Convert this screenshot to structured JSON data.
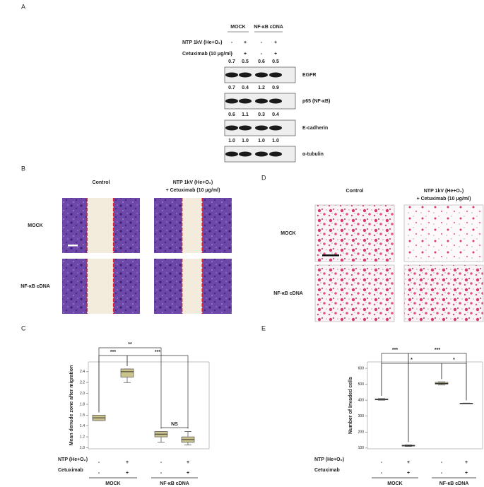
{
  "panels": {
    "a": {
      "label": "A",
      "columns": [
        "MOCK",
        "NF-κB cDNA"
      ],
      "treatments": [
        {
          "name": "NTP 1kV (He+O₂)",
          "marks": [
            "-",
            "+",
            "-",
            "+"
          ]
        },
        {
          "name": "Cetuximab (10 μg/ml)",
          "marks": [
            "-",
            "+",
            "-",
            "+"
          ]
        }
      ],
      "bands": [
        {
          "name": "EGFR",
          "quant": [
            "0.7",
            "0.5",
            "0.6",
            "0.5"
          ]
        },
        {
          "name": "p65 (NF-κB)",
          "quant": [
            "0.7",
            "0.4",
            "1.2",
            "0.9"
          ]
        },
        {
          "name": "E-cadherin",
          "quant": [
            "0.6",
            "1.1",
            "0.3",
            "0.4"
          ]
        },
        {
          "name": "α-tubulin",
          "quant": [
            "1.0",
            "1.0",
            "1.0",
            "1.0"
          ]
        }
      ]
    },
    "b": {
      "label": "B",
      "columns": [
        [
          "Control"
        ],
        [
          "NTP 1kV (He+O₂)",
          "+ Cetuximab (10 μg/ml)"
        ]
      ],
      "rows": [
        "MOCK",
        "NF-κB cDNA"
      ]
    },
    "d": {
      "label": "D",
      "columns": [
        [
          "Control"
        ],
        [
          "NTP 1kV (He+O₂)",
          "+ Cetuximab (10 μg/ml)"
        ]
      ],
      "rows": [
        "MOCK",
        "NF-κB cDNA"
      ]
    }
  },
  "chart_data": [
    {
      "type": "box",
      "panel_label": "C",
      "ylabel": "Mean denude zone after migration",
      "ylim": [
        0.98,
        2.58
      ],
      "yticks": [
        {
          "value": 1,
          "label": "1.0"
        },
        1.2,
        1.4,
        1.6,
        1.8,
        {
          "value": 2,
          "label": "2.0"
        },
        2.2,
        2.4
      ],
      "color": "#cbc38c",
      "boxes": [
        {
          "low": 1.5,
          "q1": 1.5,
          "median": 1.55,
          "q3": 1.6,
          "high": 1.6
        },
        {
          "low": 2.2,
          "q1": 2.3,
          "median": 2.4,
          "q3": 2.45,
          "high": 2.45
        },
        {
          "low": 1.1,
          "q1": 1.2,
          "median": 1.25,
          "q3": 1.3,
          "high": 1.3
        },
        {
          "low": 1.05,
          "q1": 1.1,
          "median": 1.15,
          "q3": 1.2,
          "high": 1.3
        }
      ],
      "annotations": [
        "***",
        "**",
        "***",
        "NS"
      ],
      "conditions": [
        {
          "name": "NTP (He+O₂)",
          "marks": [
            "-",
            "+",
            "-",
            "+"
          ]
        },
        {
          "name": "Cetuximab",
          "marks": [
            "-",
            "+",
            "-",
            "+"
          ]
        }
      ],
      "groups": [
        "MOCK",
        "NF-κB cDNA"
      ]
    },
    {
      "type": "box",
      "panel_label": "E",
      "ylabel": "Number of Invaded cells",
      "ylim": [
        95,
        640
      ],
      "yticks": [
        100,
        200,
        300,
        400,
        500,
        600
      ],
      "color": "#cbc38c",
      "boxes": [
        {
          "low": 400,
          "q1": 402,
          "median": 405,
          "q3": 408,
          "high": 410
        },
        {
          "low": 110,
          "q1": 112,
          "median": 115,
          "q3": 118,
          "high": 120
        },
        {
          "low": 495,
          "q1": 500,
          "median": 505,
          "q3": 512,
          "high": 515
        },
        {
          "low": 378,
          "q1": 379,
          "median": 380,
          "q3": 381,
          "high": 382
        }
      ],
      "annotations": [
        "***",
        "***",
        "*",
        "*"
      ],
      "conditions": [
        {
          "name": "NTP (He+O₂)",
          "marks": [
            "-",
            "+",
            "-",
            "+"
          ]
        },
        {
          "name": "Cetuximab",
          "marks": [
            "-",
            "+",
            "-",
            "+"
          ]
        }
      ],
      "groups": [
        "MOCK",
        "NF-κB cDNA"
      ]
    }
  ]
}
